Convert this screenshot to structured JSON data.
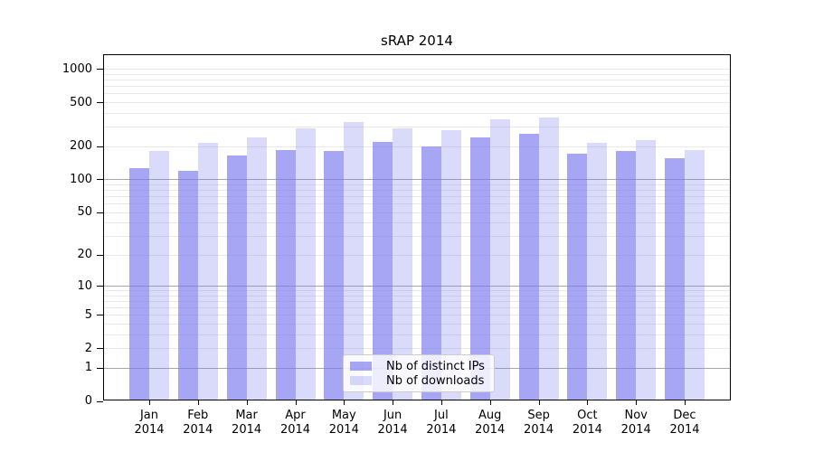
{
  "title": "sRAP 2014",
  "chart_data": {
    "type": "bar",
    "title": "sRAP 2014",
    "categories": [
      "Jan 2014",
      "Feb 2014",
      "Mar 2014",
      "Apr 2014",
      "May 2014",
      "Jun 2014",
      "Jul 2014",
      "Aug 2014",
      "Sep 2014",
      "Oct 2014",
      "Nov 2014",
      "Dec 2014"
    ],
    "series": [
      {
        "name": "Nb of distinct IPs",
        "key": "ips",
        "values": [
          125,
          120,
          165,
          185,
          180,
          220,
          200,
          240,
          260,
          170,
          180,
          155
        ]
      },
      {
        "name": "Nb of downloads",
        "key": "downloads",
        "values": [
          180,
          215,
          240,
          290,
          330,
          290,
          280,
          350,
          365,
          215,
          225,
          185
        ]
      }
    ],
    "yscale": "log1p",
    "ylim": [
      0,
      1000
    ],
    "yticks": [
      0,
      1,
      2,
      5,
      10,
      20,
      50,
      100,
      200,
      500,
      1000
    ],
    "minor_grid_values": [
      3,
      4,
      6,
      7,
      8,
      9,
      30,
      40,
      60,
      70,
      80,
      90,
      300,
      400,
      600,
      700,
      800,
      900
    ],
    "grid": true,
    "legend_position": "lower center"
  },
  "legend": {
    "items": [
      {
        "label": "Nb of distinct IPs",
        "series": "ips"
      },
      {
        "label": "Nb of downloads",
        "series": "downloads"
      }
    ]
  },
  "colors": {
    "ips_fill": "rgba(120,120,240,0.66)",
    "downloads_fill": "rgba(120,120,240,0.27)",
    "grid_major": "#a8a8a8",
    "grid_minor": "#e9e9e9",
    "axis": "#000000",
    "background": "#ffffff"
  }
}
